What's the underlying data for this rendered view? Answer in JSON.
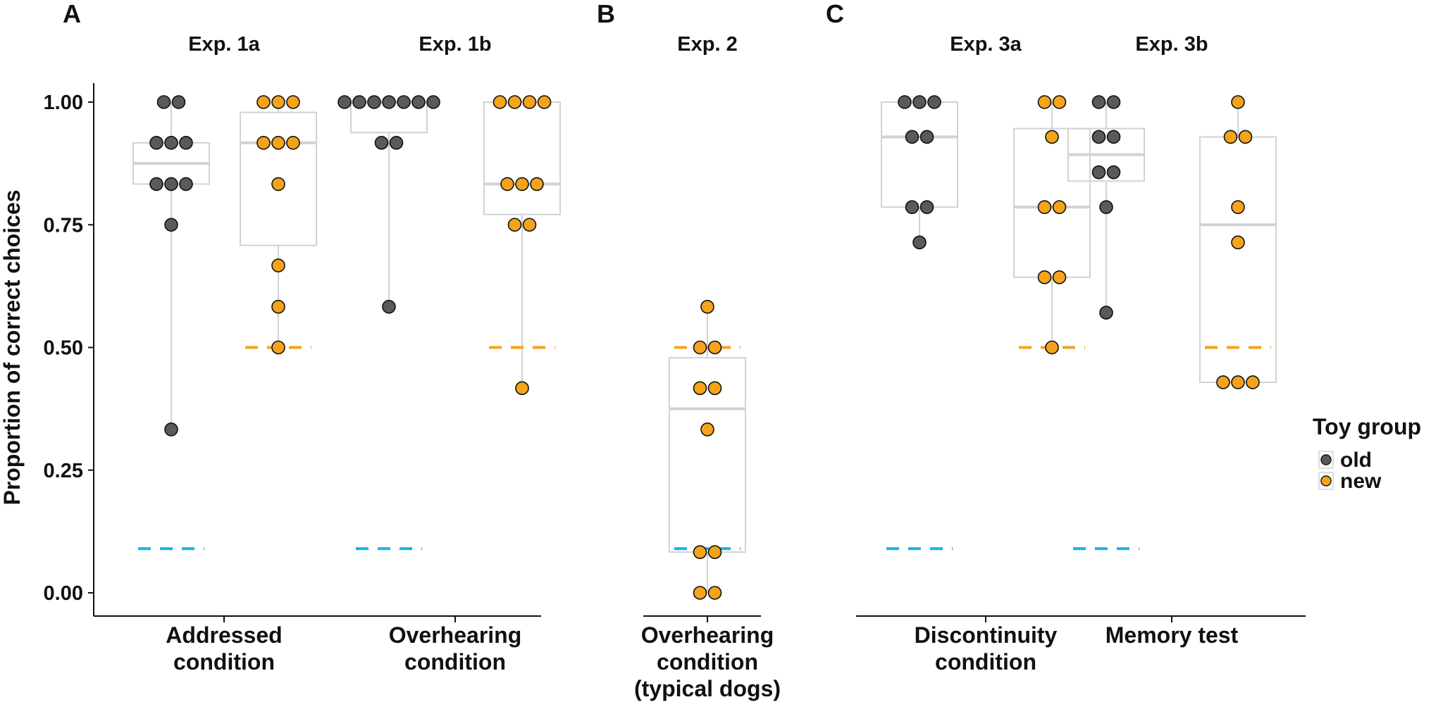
{
  "figure": {
    "y_axis_label": "Proportion of correct choices",
    "y_ticks": [
      "0.00",
      "0.25",
      "0.50",
      "0.75",
      "1.00"
    ],
    "legend": {
      "title": "Toy group",
      "items": [
        {
          "label": "old",
          "color": "#5a5a5a"
        },
        {
          "label": "new",
          "color": "#f5a31a"
        }
      ]
    }
  },
  "chart_data": [
    {
      "panel": "A",
      "type": "box-dot",
      "ylim": [
        0,
        1
      ],
      "ylabel": "Proportion of correct choices",
      "groups": [
        {
          "title": "Exp. 1a",
          "category": [
            "Addressed",
            "condition"
          ],
          "cyan_chance": 0.09,
          "orange_chance": 0.5,
          "series": [
            {
              "name": "old",
              "color": "#5a5a5a",
              "box": {
                "q1": 0.833,
                "median": 0.875,
                "q3": 0.917
              },
              "points": [
                1.0,
                1.0,
                0.917,
                0.917,
                0.917,
                0.833,
                0.833,
                0.833,
                0.75,
                0.333
              ]
            },
            {
              "name": "new",
              "color": "#f5a31a",
              "box": {
                "q1": 0.708,
                "median": 0.917,
                "q3": 0.979
              },
              "points": [
                1.0,
                1.0,
                1.0,
                0.917,
                0.917,
                0.917,
                0.833,
                0.667,
                0.583,
                0.5
              ]
            }
          ]
        },
        {
          "title": "Exp. 1b",
          "category": [
            "Overhearing",
            "condition"
          ],
          "cyan_chance": 0.09,
          "orange_chance": 0.5,
          "series": [
            {
              "name": "old",
              "color": "#5a5a5a",
              "box": {
                "q1": 0.938,
                "median": 1.0,
                "q3": 1.0
              },
              "points": [
                1.0,
                1.0,
                1.0,
                1.0,
                1.0,
                1.0,
                1.0,
                0.917,
                0.917,
                0.583
              ]
            },
            {
              "name": "new",
              "color": "#f5a31a",
              "box": {
                "q1": 0.771,
                "median": 0.833,
                "q3": 1.0
              },
              "points": [
                1.0,
                1.0,
                1.0,
                1.0,
                0.833,
                0.833,
                0.833,
                0.75,
                0.75,
                0.417
              ]
            }
          ]
        }
      ]
    },
    {
      "panel": "B",
      "type": "box-dot",
      "ylim": [
        0,
        1
      ],
      "groups": [
        {
          "title": "Exp. 2",
          "category": [
            "Overhearing",
            "condition",
            "(typical dogs)"
          ],
          "cyan_chance": 0.09,
          "orange_chance": 0.5,
          "series": [
            {
              "name": "new",
              "color": "#f5a31a",
              "box": {
                "q1": 0.083,
                "median": 0.375,
                "q3": 0.479
              },
              "points": [
                0.583,
                0.5,
                0.5,
                0.417,
                0.417,
                0.333,
                0.083,
                0.083,
                0.0,
                0.0
              ]
            }
          ]
        }
      ]
    },
    {
      "panel": "C",
      "type": "box-dot",
      "ylim": [
        0,
        1
      ],
      "groups": [
        {
          "title": "Exp. 3a",
          "category": [
            "Discontinuity",
            "condition"
          ],
          "cyan_chance": 0.09,
          "orange_chance": 0.5,
          "series": [
            {
              "name": "old",
              "color": "#5a5a5a",
              "box": {
                "q1": 0.786,
                "median": 0.929,
                "q3": 1.0
              },
              "points": [
                1.0,
                1.0,
                1.0,
                0.929,
                0.929,
                0.786,
                0.786,
                0.714
              ]
            },
            {
              "name": "new",
              "color": "#f5a31a",
              "box": {
                "q1": 0.643,
                "median": 0.786,
                "q3": 0.946
              },
              "points": [
                1.0,
                1.0,
                0.929,
                0.786,
                0.786,
                0.643,
                0.643,
                0.5
              ]
            }
          ]
        },
        {
          "title": "Exp. 3b",
          "category": [
            "Memory test"
          ],
          "cyan_chance": 0.09,
          "orange_chance": 0.5,
          "series": [
            {
              "name": "old",
              "color": "#5a5a5a",
              "box": {
                "q1": 0.839,
                "median": 0.893,
                "q3": 0.946
              },
              "points": [
                1.0,
                1.0,
                0.929,
                0.929,
                0.857,
                0.857,
                0.786,
                0.571
              ]
            },
            {
              "name": "new",
              "color": "#f5a31a",
              "box": {
                "q1": 0.429,
                "median": 0.75,
                "q3": 0.929
              },
              "points": [
                1.0,
                0.929,
                0.929,
                0.786,
                0.714,
                0.429,
                0.429,
                0.429
              ]
            }
          ]
        }
      ]
    }
  ]
}
